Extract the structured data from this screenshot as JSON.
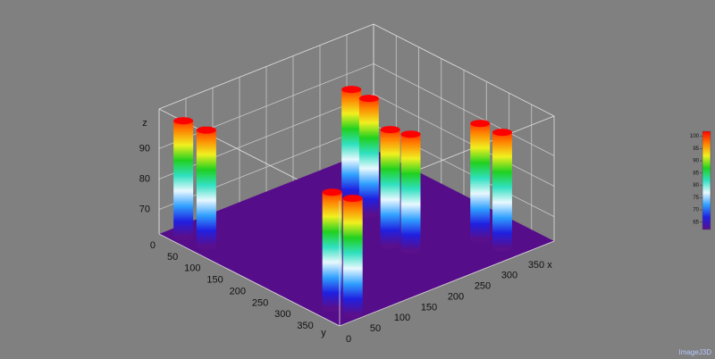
{
  "chart_data": {
    "type": "surface3d",
    "xlabel": "x",
    "ylabel": "y",
    "zlabel": "z",
    "xlim": [
      0,
      400
    ],
    "ylim": [
      0,
      400
    ],
    "zlim": [
      62,
      103
    ],
    "xticks": [
      0,
      50,
      100,
      150,
      200,
      250,
      300,
      350
    ],
    "yticks": [
      0,
      50,
      100,
      150,
      200,
      250,
      300,
      350
    ],
    "zticks": [
      70,
      80,
      90
    ],
    "floor_color": "#560d8a",
    "colormap": [
      "#5a0f8c",
      "#2020e0",
      "#30a0ff",
      "#e8f8ff",
      "#30e0c0",
      "#20d020",
      "#f0f020",
      "#ff8000",
      "#ff0000"
    ],
    "clim": [
      62,
      102
    ],
    "colorbar_ticks": [
      65,
      70,
      75,
      80,
      85,
      90,
      95,
      100
    ],
    "pillars": [
      {
        "x": 261,
        "y": 116,
        "z": 100
      },
      {
        "x": 261,
        "y": 155,
        "z": 100
      },
      {
        "x": 20,
        "y": 30,
        "z": 100
      },
      {
        "x": 219,
        "y": 252,
        "z": 100
      },
      {
        "x": 326,
        "y": 324,
        "z": 100
      },
      {
        "x": 25,
        "y": 75,
        "z": 100
      },
      {
        "x": 231,
        "y": 283,
        "z": 100
      },
      {
        "x": 331,
        "y": 367,
        "z": 100
      },
      {
        "x": 29,
        "y": 349,
        "z": 100
      },
      {
        "x": 38,
        "y": 384,
        "z": 100
      }
    ],
    "watermark": "ImageJ3D"
  }
}
